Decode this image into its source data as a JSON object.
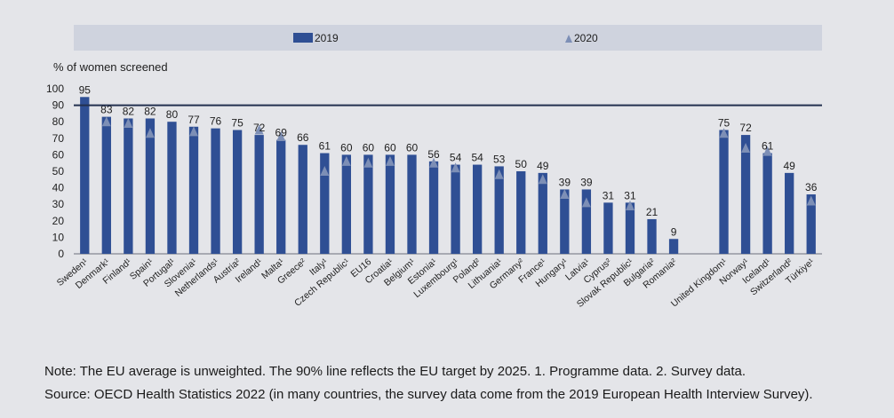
{
  "chart_data": {
    "type": "bar",
    "ylabel": "% of women screened",
    "ylim": [
      0,
      100
    ],
    "yticks": [
      0,
      10,
      20,
      30,
      40,
      50,
      60,
      70,
      80,
      90,
      100
    ],
    "target_line": 90,
    "colors": {
      "bar_2019": "#2f4f94",
      "marker_2020": "#7d8fb6",
      "legend_band": "#cfd3de",
      "target_line": "#23304f"
    },
    "legend": {
      "placement": "top",
      "items": [
        {
          "label": "2019",
          "shape": "bar"
        },
        {
          "label": "2020",
          "shape": "triangle"
        }
      ]
    },
    "categories": [
      "Sweden¹",
      "Denmark¹",
      "Finland¹",
      "Spain¹",
      "Portugal¹",
      "Slovenia¹",
      "Netherlands¹",
      "Austria²",
      "Ireland¹",
      "Malta¹",
      "Greece²",
      "Italy¹",
      "Czech Republic¹",
      "EU16",
      "Croatia¹",
      "Belgium¹",
      "Estonia¹",
      "Luxembourg¹",
      "Poland²",
      "Lithuania¹",
      "Germany²",
      "France¹",
      "Hungary¹",
      "Latvia¹",
      "Cyprus²",
      "Slovak Republic¹",
      "Bulgaria²",
      "Romania²",
      "United Kingdom¹",
      "Norway¹",
      "Iceland¹",
      "Switzerland²",
      "Türkiye¹"
    ],
    "series": [
      {
        "name": "2019",
        "values": [
          95,
          83,
          82,
          82,
          80,
          77,
          76,
          75,
          72,
          69,
          66,
          61,
          60,
          60,
          60,
          60,
          56,
          54,
          54,
          53,
          50,
          49,
          39,
          39,
          31,
          31,
          21,
          9,
          75,
          72,
          61,
          49,
          36
        ]
      },
      {
        "name": "2020",
        "values": [
          null,
          80,
          79,
          73,
          null,
          74,
          null,
          null,
          75,
          71,
          null,
          50,
          56,
          55,
          56,
          null,
          55,
          52,
          null,
          48,
          null,
          45,
          36,
          31,
          null,
          29,
          null,
          null,
          73,
          64,
          62,
          null,
          32
        ]
      }
    ]
  },
  "notes": {
    "line1": "Note: The EU average is unweighted. The 90% line reflects the EU target by 2025. 1. Programme data. 2. Survey data.",
    "line2": "Source: OECD Health Statistics 2022 (in many countries, the survey data come from the 2019 European Health Interview Survey)."
  }
}
